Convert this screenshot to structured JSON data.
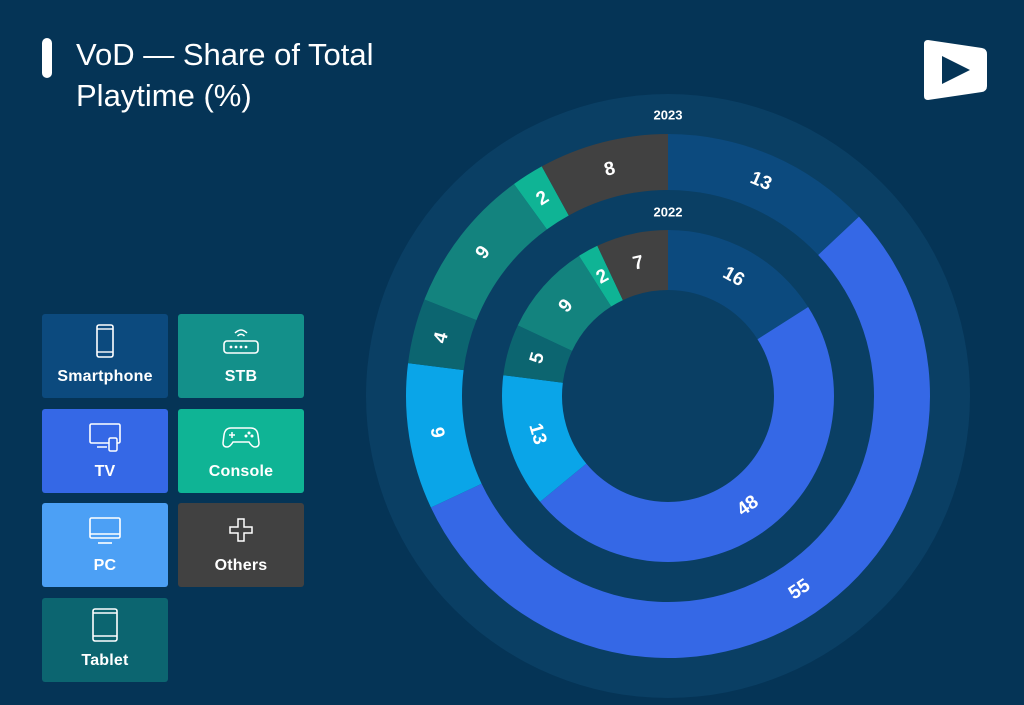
{
  "header": {
    "title_line1": "VoD — Share of Total",
    "title_line2": "Playtime (%)"
  },
  "logo": {
    "icon": "play-logo-icon"
  },
  "legend": {
    "items": [
      {
        "label": "Smartphone",
        "color": "#0c4a7e",
        "icon": "smartphone-icon"
      },
      {
        "label": "STB",
        "color": "#13908a",
        "icon": "router-icon"
      },
      {
        "label": "TV",
        "color": "#3568e6",
        "icon": "tv-icon"
      },
      {
        "label": "Console",
        "color": "#0fb495",
        "icon": "gamepad-icon"
      },
      {
        "label": "PC",
        "color": "#4ca0f5",
        "icon": "monitor-icon"
      },
      {
        "label": "Others",
        "color": "#414141",
        "icon": "plus-icon"
      },
      {
        "label": "Tablet",
        "color": "#0c6570",
        "icon": "tablet-icon"
      }
    ]
  },
  "chart_data": {
    "type": "donut",
    "title": "VoD — Share of Total Playtime (%)",
    "categories": [
      "Smartphone",
      "TV",
      "PC",
      "Tablet",
      "STB",
      "Console",
      "Others"
    ],
    "colors": {
      "Smartphone": "#0c4a7e",
      "TV": "#3568e6",
      "PC": "#0aa5e8",
      "Tablet": "#0c6570",
      "STB": "#13837e",
      "Console": "#0fb495",
      "Others": "#414141"
    },
    "series": [
      {
        "name": "2023",
        "values": [
          13,
          55,
          9,
          4,
          9,
          2,
          8
        ]
      },
      {
        "name": "2022",
        "values": [
          16,
          48,
          13,
          5,
          9,
          2,
          7
        ]
      }
    ],
    "grid": false,
    "legend_position": "left"
  }
}
